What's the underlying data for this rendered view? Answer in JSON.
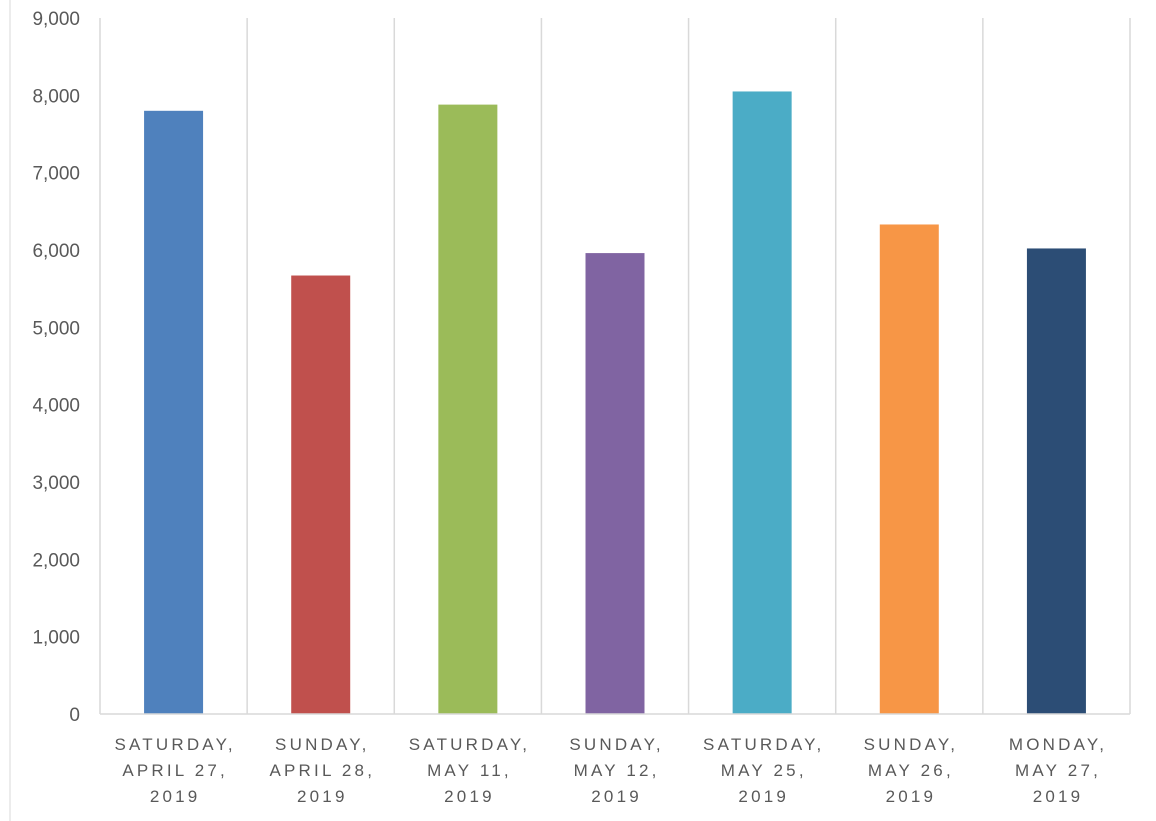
{
  "chart_data": {
    "type": "bar",
    "title": "",
    "xlabel": "",
    "ylabel": "",
    "ylim": [
      0,
      9000
    ],
    "y_ticks": [
      "0",
      "1,000",
      "2,000",
      "3,000",
      "4,000",
      "5,000",
      "6,000",
      "7,000",
      "8,000",
      "9,000"
    ],
    "y_tick_values": [
      0,
      1000,
      2000,
      3000,
      4000,
      5000,
      6000,
      7000,
      8000,
      9000
    ],
    "grid": "vertical category separators",
    "legend": "none",
    "categories": [
      [
        "SATURDAY,",
        "APRIL 27,",
        "2019"
      ],
      [
        "SUNDAY,",
        "APRIL 28,",
        "2019"
      ],
      [
        "SATURDAY,",
        "MAY 11,",
        "2019"
      ],
      [
        "SUNDAY,",
        "MAY 12,",
        "2019"
      ],
      [
        "SATURDAY,",
        "MAY 25,",
        "2019"
      ],
      [
        "SUNDAY,",
        "MAY 26,",
        "2019"
      ],
      [
        "MONDAY,",
        "MAY 27,",
        "2019"
      ]
    ],
    "values": [
      7800,
      5670,
      7880,
      5960,
      8050,
      6330,
      6020
    ],
    "colors": [
      "#4f81bd",
      "#c0504d",
      "#9bbb59",
      "#8064a2",
      "#4bacc6",
      "#f79646",
      "#2c4d75"
    ]
  }
}
